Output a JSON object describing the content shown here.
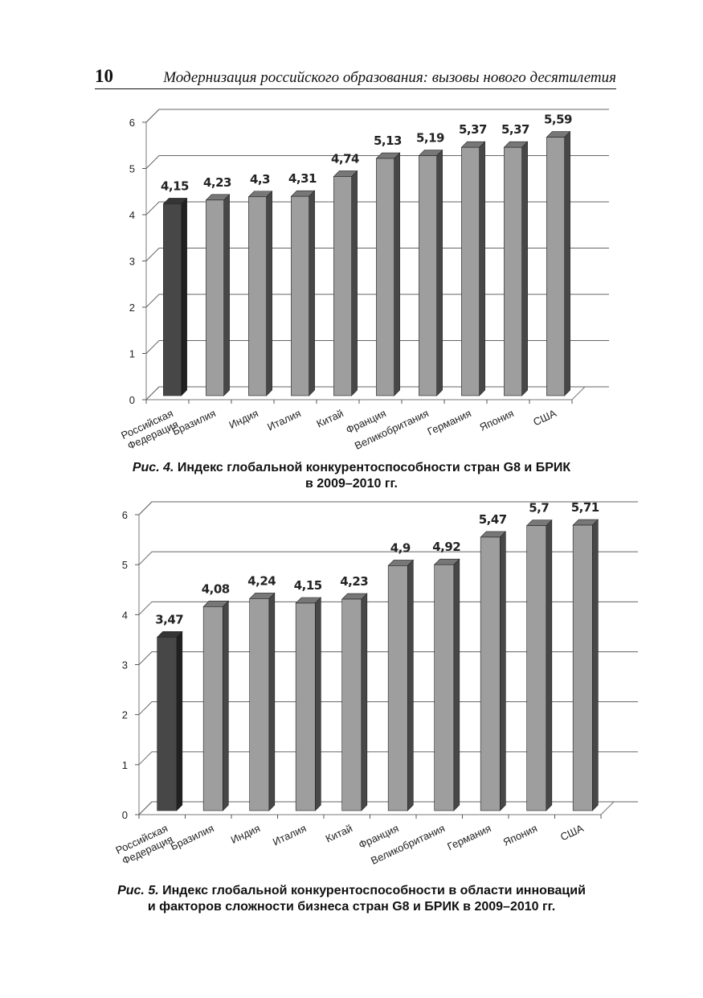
{
  "header": {
    "page_number": "10",
    "running_title": "Модернизация российского образования: вызовы нового десятилетия"
  },
  "chart_data": [
    {
      "type": "bar3d",
      "figure_label": "Рис. 4.",
      "title_lines": [
        "Индекс глобальной конкурентоспособности стран G8 и БРИК",
        "в 2009–2010 гг."
      ],
      "categories": [
        "Российская Федерация",
        "Бразилия",
        "Индия",
        "Италия",
        "Китай",
        "Франция",
        "Великобритания",
        "Германия",
        "Япония",
        "США"
      ],
      "values": [
        4.15,
        4.23,
        4.3,
        4.31,
        4.74,
        5.13,
        5.19,
        5.37,
        5.37,
        5.59
      ],
      "value_labels": [
        "4,15",
        "4,23",
        "4,3",
        "4,31",
        "4,74",
        "5,13",
        "5,19",
        "5,37",
        "5,37",
        "5,59"
      ],
      "colors": [
        "#474747",
        "#9e9e9e",
        "#9e9e9e",
        "#9e9e9e",
        "#9e9e9e",
        "#9e9e9e",
        "#9e9e9e",
        "#9e9e9e",
        "#9e9e9e",
        "#9e9e9e"
      ],
      "ylim": [
        0,
        6
      ],
      "yticks": [
        0,
        1,
        2,
        3,
        4,
        5,
        6
      ],
      "grid": true
    },
    {
      "type": "bar3d",
      "figure_label": "Рис. 5.",
      "title_lines": [
        "Индекс глобальной конкурентоспособности в области инноваций",
        "и факторов сложности бизнеса стран G8 и БРИК в 2009–2010 гг."
      ],
      "categories": [
        "Российская Федерация",
        "Бразилия",
        "Индия",
        "Италия",
        "Китай",
        "Франция",
        "Великобритания",
        "Германия",
        "Япония",
        "США"
      ],
      "values": [
        3.47,
        4.08,
        4.24,
        4.15,
        4.23,
        4.9,
        4.92,
        5.47,
        5.7,
        5.71
      ],
      "value_labels": [
        "3,47",
        "4,08",
        "4,24",
        "4,15",
        "4,23",
        "4,9",
        "4,92",
        "5,47",
        "5,7",
        "5,71"
      ],
      "colors": [
        "#474747",
        "#9e9e9e",
        "#9e9e9e",
        "#9e9e9e",
        "#9e9e9e",
        "#9e9e9e",
        "#9e9e9e",
        "#9e9e9e",
        "#9e9e9e",
        "#9e9e9e"
      ],
      "ylim": [
        0,
        6
      ],
      "yticks": [
        0,
        1,
        2,
        3,
        4,
        5,
        6
      ],
      "grid": true
    }
  ]
}
